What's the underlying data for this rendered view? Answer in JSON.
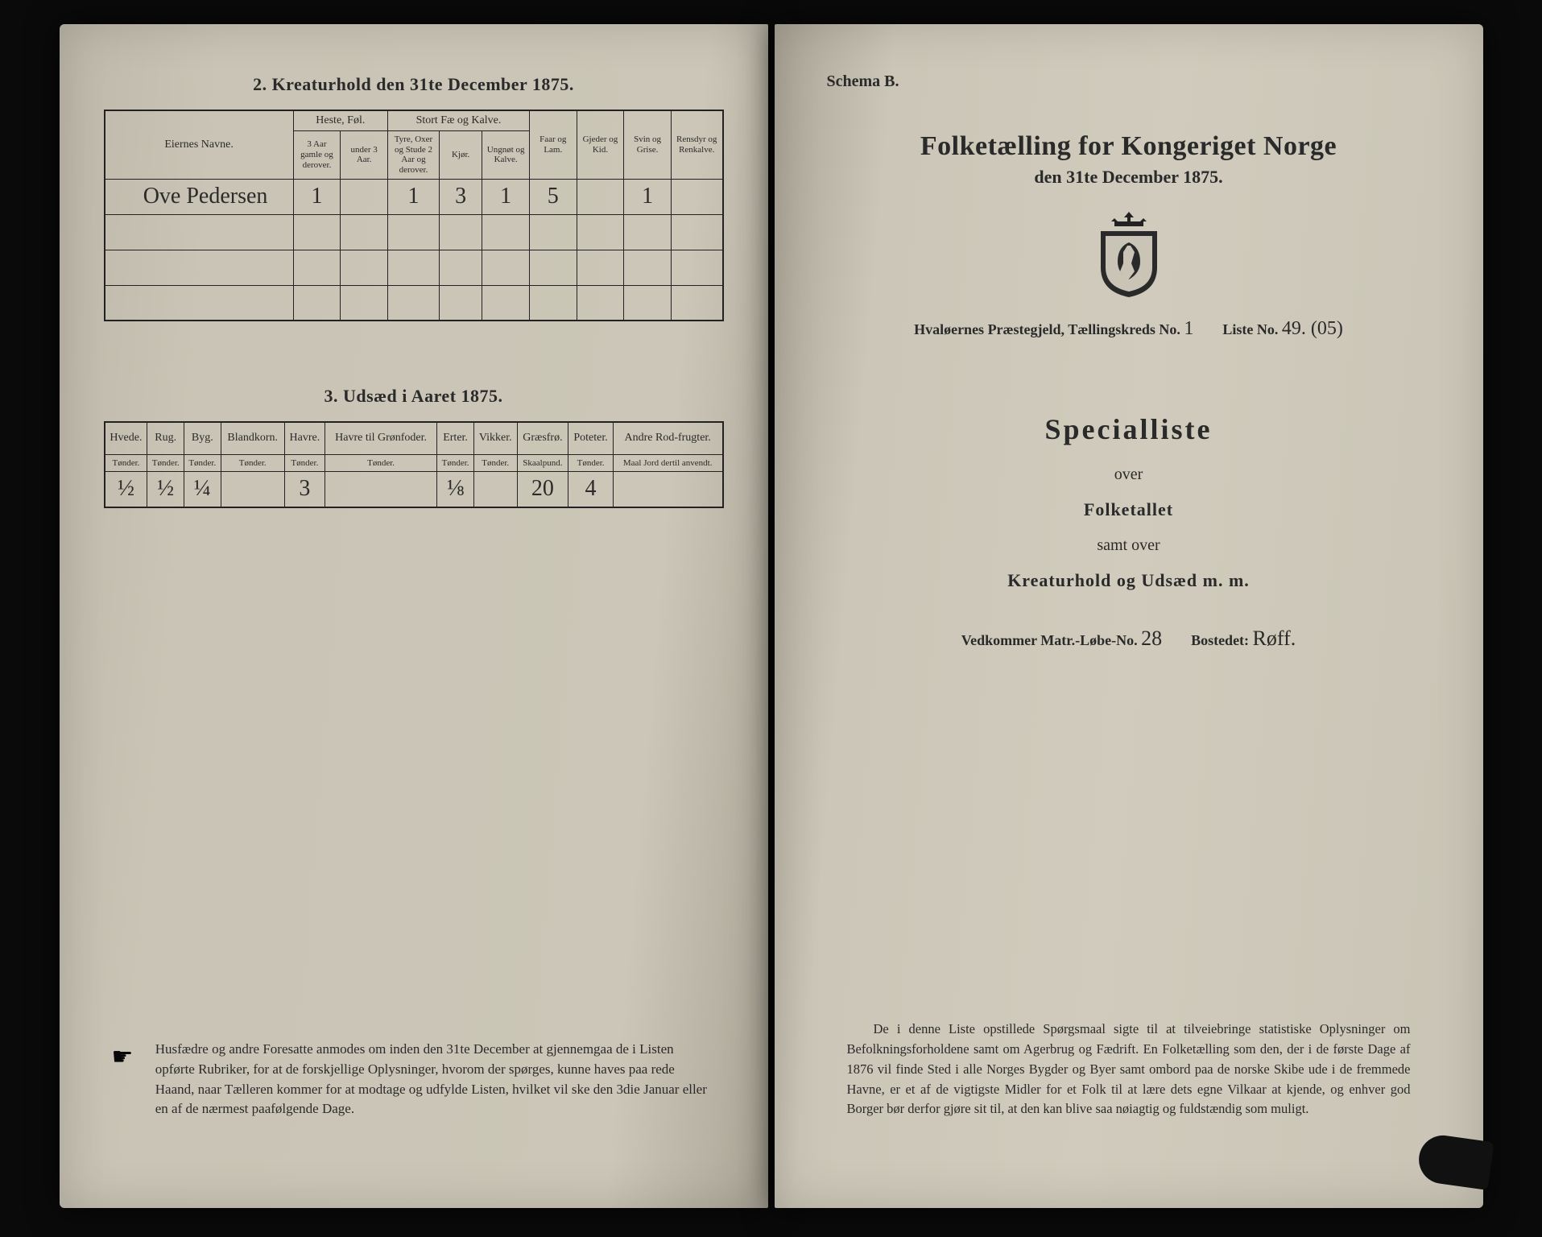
{
  "left": {
    "section2": {
      "title": "2.  Kreaturhold den 31te December 1875.",
      "header": {
        "owner": "Eiernes Navne.",
        "horses": "Heste, Føl.",
        "cattle": "Stort Fæ og Kalve.",
        "sheep": "Faar og Lam.",
        "goats": "Gjeder og Kid.",
        "pigs": "Svin og Grise.",
        "reindeer": "Rensdyr og Renkalve.",
        "h1": "3 Aar gamle og derover.",
        "h2": "under 3 Aar.",
        "c1": "Tyre, Oxer og Stude 2 Aar og derover.",
        "c2": "Kjør.",
        "c3": "Ungnøt og Kalve."
      },
      "row": {
        "name": "Ove Pedersen",
        "h1": "1",
        "h2": "",
        "c1": "1",
        "c2": "3",
        "c3": "1",
        "sheep": "5",
        "goats": "",
        "pigs": "1",
        "reindeer": ""
      }
    },
    "section3": {
      "title": "3.  Udsæd i Aaret 1875.",
      "cols": [
        "Hvede.",
        "Rug.",
        "Byg.",
        "Blandkorn.",
        "Havre.",
        "Havre til Grønfoder.",
        "Erter.",
        "Vikker.",
        "Græsfrø.",
        "Poteter.",
        "Andre Rod-frugter."
      ],
      "units": [
        "Tønder.",
        "Tønder.",
        "Tønder.",
        "Tønder.",
        "Tønder.",
        "Tønder.",
        "Tønder.",
        "Tønder.",
        "Skaalpund.",
        "Tønder.",
        "Maal Jord dertil anvendt."
      ],
      "vals": [
        "½",
        "½",
        "¼",
        "",
        "3",
        "",
        "⅛",
        "",
        "20",
        "4",
        ""
      ]
    },
    "footnote": "Husfædre og andre Foresatte anmodes om inden den 31te December at gjennemgaa de i Listen opførte Rubriker, for at de forskjellige Oplysninger, hvorom der spørges, kunne haves paa rede Haand, naar Tælleren kommer for at modtage og udfylde Listen, hvilket vil ske den 3die Januar eller en af de nærmest paafølgende Dage."
  },
  "right": {
    "schema": "Schema B.",
    "title": "Folketælling for Kongeriget Norge",
    "subtitle": "den 31te December 1875.",
    "meta": {
      "parish_label": "Hvaløernes Præstegjeld, Tællingskreds No.",
      "parish_no": "1",
      "list_label": "Liste No.",
      "list_no": "49. (05)"
    },
    "spec_title": "Specialliste",
    "over1": "over",
    "folketallet": "Folketallet",
    "samt": "samt over",
    "kreatur": "Kreaturhold og Udsæd m. m.",
    "ved": {
      "label1": "Vedkommer Matr.-Løbe-No.",
      "val1": "28",
      "label2": "Bostedet:",
      "val2": "Røff."
    },
    "footnote": "De i denne Liste opstillede Spørgsmaal sigte til at tilveiebringe statistiske Oplysninger om Befolkningsforholdene samt om Agerbrug og Fædrift. En Folketælling som den, der i de første Dage af 1876 vil finde Sted i alle Norges Bygder og Byer samt ombord paa de norske Skibe ude i de fremmede Havne, er et af de vigtigste Midler for et Folk til at lære dets egne Vilkaar at kjende, og enhver god Borger bør derfor gjøre sit til, at den kan blive saa nøiagtig og fuldstændig som muligt."
  }
}
